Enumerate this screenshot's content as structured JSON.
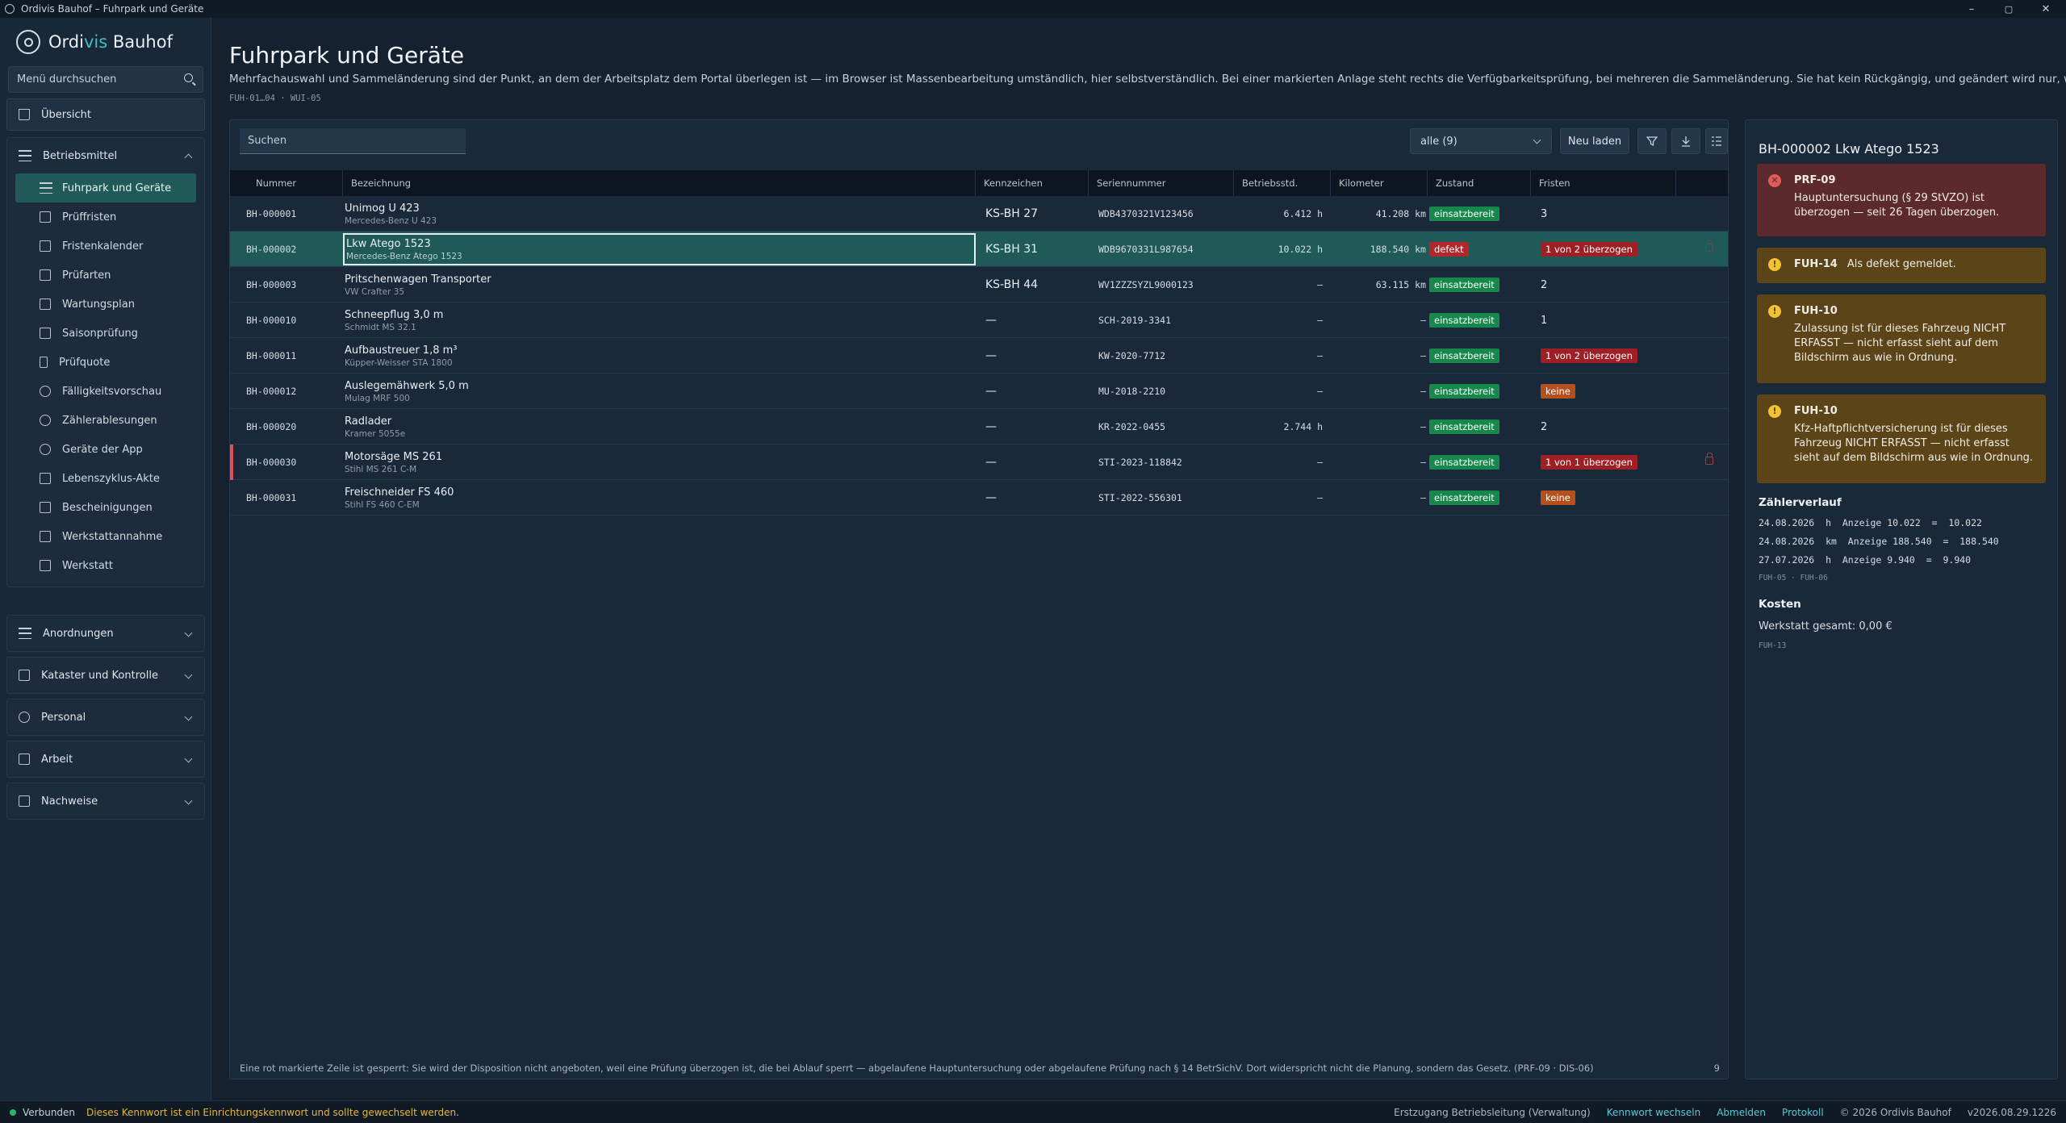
{
  "window": {
    "title": "Ordivis Bauhof – Fuhrpark und Geräte",
    "minimize": "–",
    "maximize": "▢",
    "close": "✕"
  },
  "brand": {
    "part1": "Ordi",
    "part2": "vis",
    "part3": " Bauhof"
  },
  "sidebar": {
    "search_placeholder": "Menü durchsuchen",
    "overview": "Übersicht",
    "groups": {
      "betriebsmittel": {
        "label": "Betriebsmittel",
        "items": [
          "Fuhrpark und Geräte",
          "Prüffristen",
          "Fristenkalender",
          "Prüfarten",
          "Wartungsplan",
          "Saisonprüfung",
          "Prüfquote",
          "Fälligkeitsvorschau",
          "Zählerablesungen",
          "Geräte der App",
          "Lebenszyklus-Akte",
          "Bescheinigungen",
          "Werkstattannahme",
          "Werkstatt"
        ]
      },
      "anordnungen": {
        "label": "Anordnungen"
      },
      "kataster": {
        "label": "Kataster und Kontrolle"
      },
      "personal": {
        "label": "Personal"
      },
      "arbeit": {
        "label": "Arbeit"
      },
      "nachweise": {
        "label": "Nachweise"
      }
    }
  },
  "page": {
    "title": "Fuhrpark und Geräte",
    "description": "Mehrfachauswahl und Sammeländerung sind der Punkt, an dem der Arbeitsplatz dem Portal überlegen ist — im Browser ist Massenbearbeitung umständlich, hier selbstverständlich. Bei einer markierten Anlage steht rechts die Verfügbarkeitsprüfung, bei mehreren die Sammeländerung. Sie hat kein Rückgängig, und geändert wird nur, was angehakt ist.",
    "ref": "FUH-01…04 · WUI-05"
  },
  "toolbar": {
    "search_placeholder": "Suchen",
    "filter_value": "alle (9)",
    "reload_label": "Neu laden"
  },
  "table": {
    "headers": [
      "Nummer",
      "Bezeichnung",
      "Kennzeichen",
      "Seriennummer",
      "Betriebsstd.",
      "Kilometer",
      "Zustand",
      "Fristen"
    ],
    "rows": [
      {
        "nummer": "BH-000001",
        "name": "Unimog U 423",
        "sub": "Mercedes-Benz U 423",
        "kennzeichen": "KS-BH 27",
        "serie": "WDB4370321V123456",
        "std": "6.412  h",
        "km": "41.208  km",
        "zustand": "einsatzbereit",
        "fristen": "3"
      },
      {
        "nummer": "BH-000002",
        "name": "Lkw Atego 1523",
        "sub": "Mercedes-Benz Atego 1523",
        "kennzeichen": "KS-BH 31",
        "serie": "WDB9670331L987654",
        "std": "10.022  h",
        "km": "188.540  km",
        "zustand": "defekt",
        "fristen": "1 von 2 überzogen"
      },
      {
        "nummer": "BH-000003",
        "name": "Pritschenwagen Transporter",
        "sub": "VW Crafter 35",
        "kennzeichen": "KS-BH 44",
        "serie": "WV1ZZZSYZL9000123",
        "std": "–",
        "km": "63.115  km",
        "zustand": "einsatzbereit",
        "fristen": "2"
      },
      {
        "nummer": "BH-000010",
        "name": "Schneepflug 3,0 m",
        "sub": "Schmidt MS 32.1",
        "kennzeichen": "—",
        "serie": "SCH-2019-3341",
        "std": "–",
        "km": "–",
        "zustand": "einsatzbereit",
        "fristen": "1"
      },
      {
        "nummer": "BH-000011",
        "name": "Aufbaustreuer 1,8 m³",
        "sub": "Küpper-Weisser STA 1800",
        "kennzeichen": "—",
        "serie": "KW-2020-7712",
        "std": "–",
        "km": "–",
        "zustand": "einsatzbereit",
        "fristen": "1 von 2 überzogen"
      },
      {
        "nummer": "BH-000012",
        "name": "Auslegemähwerk 5,0 m",
        "sub": "Mulag MRF 500",
        "kennzeichen": "—",
        "serie": "MU-2018-2210",
        "std": "–",
        "km": "–",
        "zustand": "einsatzbereit",
        "fristen": "keine"
      },
      {
        "nummer": "BH-000020",
        "name": "Radlader",
        "sub": "Kramer 5055e",
        "kennzeichen": "—",
        "serie": "KR-2022-0455",
        "std": "2.744  h",
        "km": "–",
        "zustand": "einsatzbereit",
        "fristen": "2"
      },
      {
        "nummer": "BH-000030",
        "name": "Motorsäge MS 261",
        "sub": "Stihl MS 261 C-M",
        "kennzeichen": "—",
        "serie": "STI-2023-118842",
        "std": "–",
        "km": "–",
        "zustand": "einsatzbereit",
        "fristen": "1 von 1 überzogen"
      },
      {
        "nummer": "BH-000031",
        "name": "Freischneider FS 460",
        "sub": "Stihl FS 460 C-EM",
        "kennzeichen": "—",
        "serie": "STI-2022-556301",
        "std": "–",
        "km": "–",
        "zustand": "einsatzbereit",
        "fristen": "keine"
      }
    ],
    "footer_note": "Eine rot markierte Zeile ist gesperrt: Sie wird der Disposition nicht angeboten, weil eine Prüfung überzogen ist, die bei Ablauf sperrt — abgelaufene Hauptuntersuchung oder abgelaufene Prüfung nach § 14 BetrSichV. Dort widerspricht nicht die Planung, sondern das Gesetz. (PRF-09 · DIS-06)",
    "footer_count": "9"
  },
  "detail": {
    "title": "BH-000002 Lkw Atego 1523",
    "alerts": [
      {
        "code": "PRF-09",
        "text": "Hauptuntersuchung (§ 29 StVZO) ist überzogen — seit 26 Tagen überzogen.",
        "level": "error"
      },
      {
        "code": "FUH-14",
        "text": "Als defekt gemeldet.",
        "level": "warning"
      },
      {
        "code": "FUH-10",
        "text": "Zulassung ist für dieses Fahrzeug NICHT ERFASST — nicht erfasst sieht auf dem Bildschirm aus wie in Ordnung.",
        "level": "warning"
      },
      {
        "code": "FUH-10",
        "text": "Kfz-Haftpflichtversicherung ist für dieses Fahrzeug NICHT ERFASST — nicht erfasst sieht auf dem Bildschirm aus wie in Ordnung.",
        "level": "warning"
      }
    ],
    "counter_title": "Zählerverlauf",
    "counter_lines": [
      "24.08.2026  h  Anzeige 10.022  =  10.022",
      "24.08.2026  km  Anzeige 188.540  =  188.540",
      "27.07.2026  h  Anzeige 9.940  =  9.940"
    ],
    "counter_ref": "FUH-05 · FUH-06",
    "cost_title": "Kosten",
    "cost_text": "Werkstatt gesamt: 0,00 €",
    "cost_ref": "FUH-13"
  },
  "status": {
    "connected": "Verbunden",
    "warning": "Dieses Kennwort ist ein Einrichtungskennwort und sollte gewechselt werden.",
    "user": "Erstzugang Betriebsleitung (Verwaltung)",
    "change_password": "Kennwort wechseln",
    "logout": "Abmelden",
    "protocol": "Protokoll",
    "copyright": "© 2026 Ordivis Bauhof",
    "version": "v2026.08.29.1226"
  },
  "colors": {
    "accent": "#3fc0c0",
    "selected_row": "#1f5a58",
    "ok": "#17874b",
    "error": "#b3262c",
    "warning_orange": "#b4501d"
  }
}
